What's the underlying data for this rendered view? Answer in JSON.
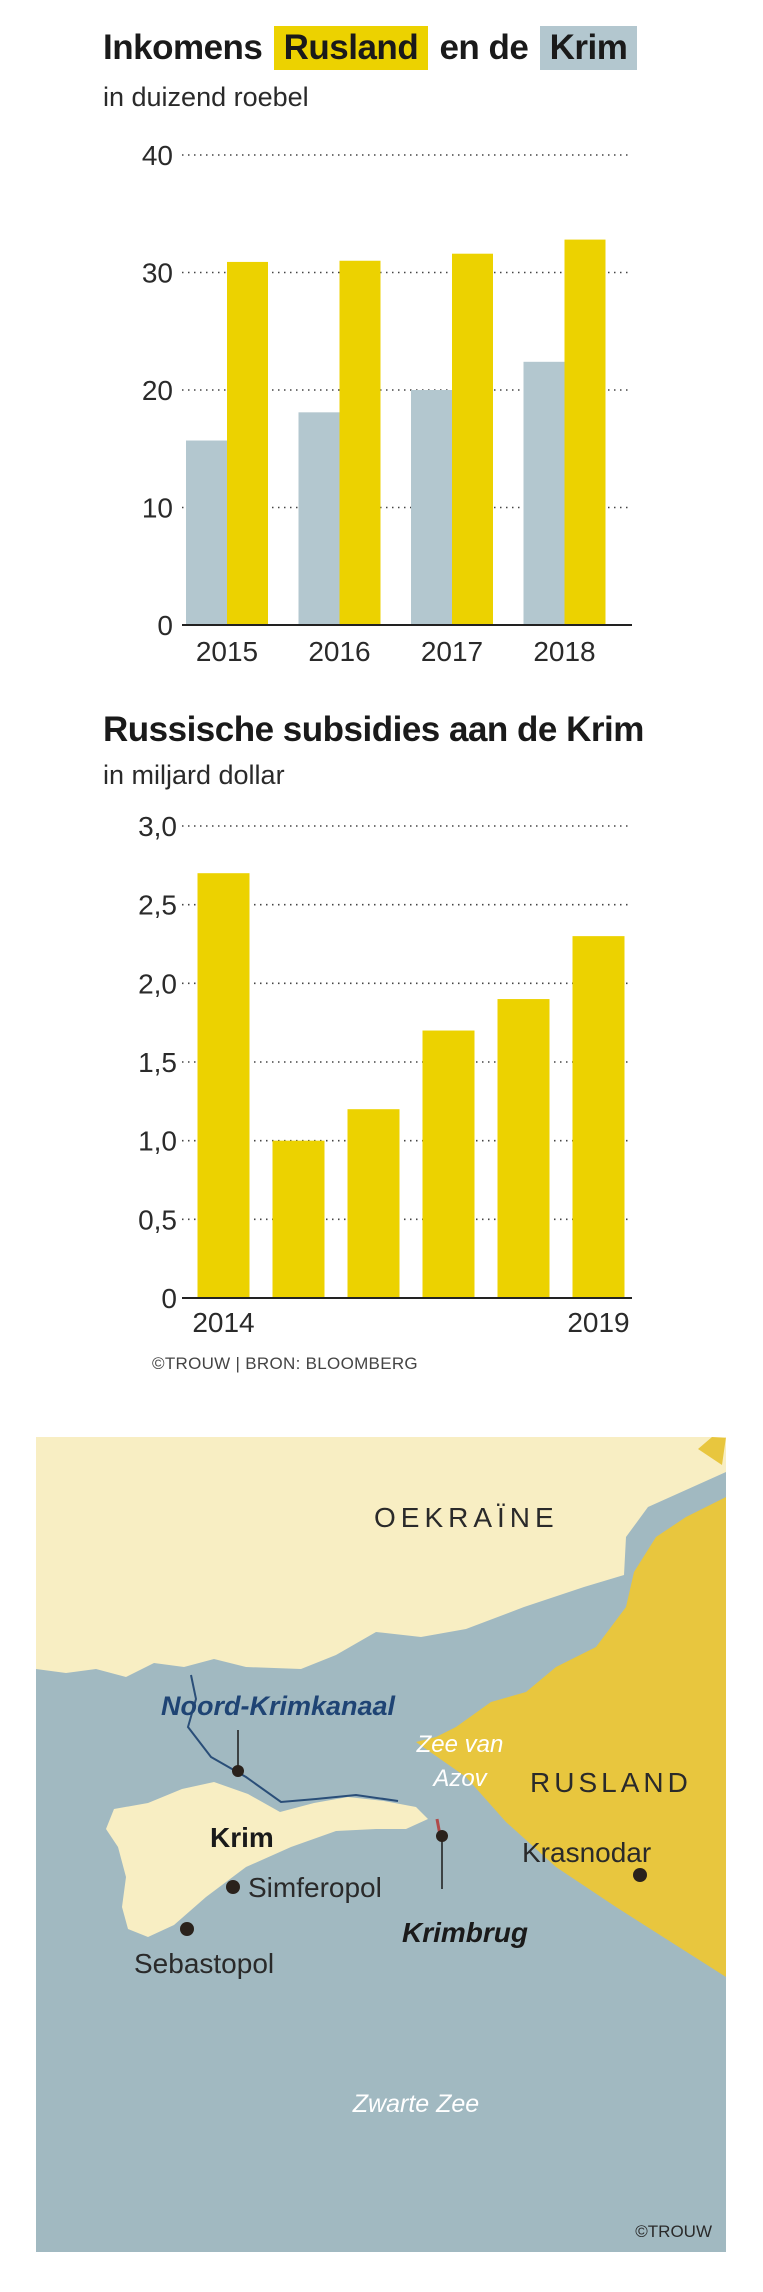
{
  "chart1": {
    "title_pre": "Inkomens",
    "title_hl1": "Rusland",
    "title_mid": "en de",
    "title_hl2": "Krim",
    "subtitle": "in duizend roebel"
  },
  "chart2": {
    "title": "Russische subsidies aan de Krim",
    "subtitle": "in miljard dollar"
  },
  "credit": "©TROUW | BRON: BLOOMBERG",
  "colors": {
    "rusland": "#ecd200",
    "krim": "#b3c7cf",
    "sea": "#a1b9c1",
    "ukraine": "#f8eec3",
    "russia": "#e8c63e"
  },
  "chart_data": [
    {
      "type": "bar",
      "title": "Inkomens Rusland en de Krim",
      "subtitle": "in duizend roebel",
      "categories": [
        "2015",
        "2016",
        "2017",
        "2018"
      ],
      "series": [
        {
          "name": "Krim",
          "values": [
            15.7,
            18.1,
            20.0,
            22.4
          ]
        },
        {
          "name": "Rusland",
          "values": [
            30.9,
            31.0,
            31.6,
            32.8
          ]
        }
      ],
      "yticks": [
        "0",
        "10",
        "20",
        "30",
        "40"
      ],
      "ylim": [
        0,
        40
      ]
    },
    {
      "type": "bar",
      "title": "Russische subsidies aan de Krim",
      "subtitle": "in miljard dollar",
      "categories": [
        "2014",
        "2015",
        "2016",
        "2017",
        "2018",
        "2019"
      ],
      "xtick_labels": [
        "2014",
        "",
        "",
        "",
        "",
        "2019"
      ],
      "values": [
        2.7,
        1.0,
        1.2,
        1.7,
        1.9,
        2.3
      ],
      "yticks": [
        "0",
        "0,5",
        "1,0",
        "1,5",
        "2,0",
        "2,5",
        "3,0"
      ],
      "ylim": [
        0,
        3.0
      ]
    }
  ],
  "map": {
    "labels": {
      "oekraine": "OEKRAÏNE",
      "rusland": "RUSLAND",
      "canal": "Noord-Krimkanaal",
      "azov1": "Zee van",
      "azov2": "Azov",
      "krim": "Krim",
      "simferopol": "Simferopol",
      "sebastopol": "Sebastopol",
      "krasnodar": "Krasnodar",
      "krimbrug": "Krimbrug",
      "zwarte_zee": "Zwarte Zee",
      "credit": "©TROUW"
    }
  }
}
